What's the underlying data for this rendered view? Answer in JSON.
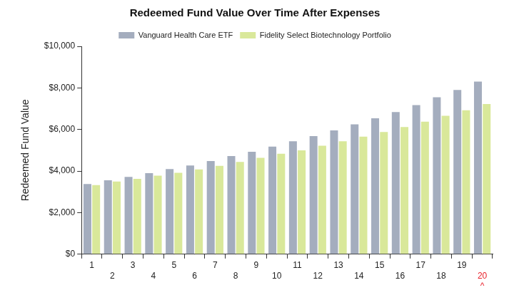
{
  "chart_data": {
    "type": "bar",
    "title": "Redeemed Fund Value Over Time After Expenses",
    "y_label": "Redeemed Fund Value",
    "categories": [
      "1",
      "2",
      "3",
      "4",
      "5",
      "6",
      "7",
      "8",
      "9",
      "10",
      "11",
      "12",
      "13",
      "14",
      "15",
      "16",
      "17",
      "18",
      "19",
      "20"
    ],
    "series": [
      {
        "name": "Vanguard Health Care ETF",
        "color": "#a4adbe",
        "values": [
          3380,
          3560,
          3720,
          3900,
          4100,
          4270,
          4480,
          4720,
          4930,
          5180,
          5430,
          5680,
          5960,
          6250,
          6540,
          6840,
          7170,
          7550,
          7900,
          8300
        ]
      },
      {
        "name": "Fidelity Select Biotechnology Portfolio",
        "color": "#d9e89a",
        "values": [
          3330,
          3500,
          3630,
          3780,
          3920,
          4080,
          4250,
          4440,
          4640,
          4830,
          5000,
          5220,
          5430,
          5660,
          5880,
          6120,
          6380,
          6660,
          6920,
          7220
        ]
      }
    ],
    "ylim": [
      0,
      10000
    ],
    "yticks": [
      {
        "value": 0,
        "label": "$0"
      },
      {
        "value": 2000,
        "label": "$2,000"
      },
      {
        "value": 4000,
        "label": "$4,000"
      },
      {
        "value": 6000,
        "label": "$6,000"
      },
      {
        "value": 8000,
        "label": "$8,000"
      },
      {
        "value": 10000,
        "label": "$10,000"
      }
    ],
    "annotations": [
      {
        "category": "20",
        "text": "^"
      }
    ],
    "grid": false,
    "legend": "top"
  }
}
